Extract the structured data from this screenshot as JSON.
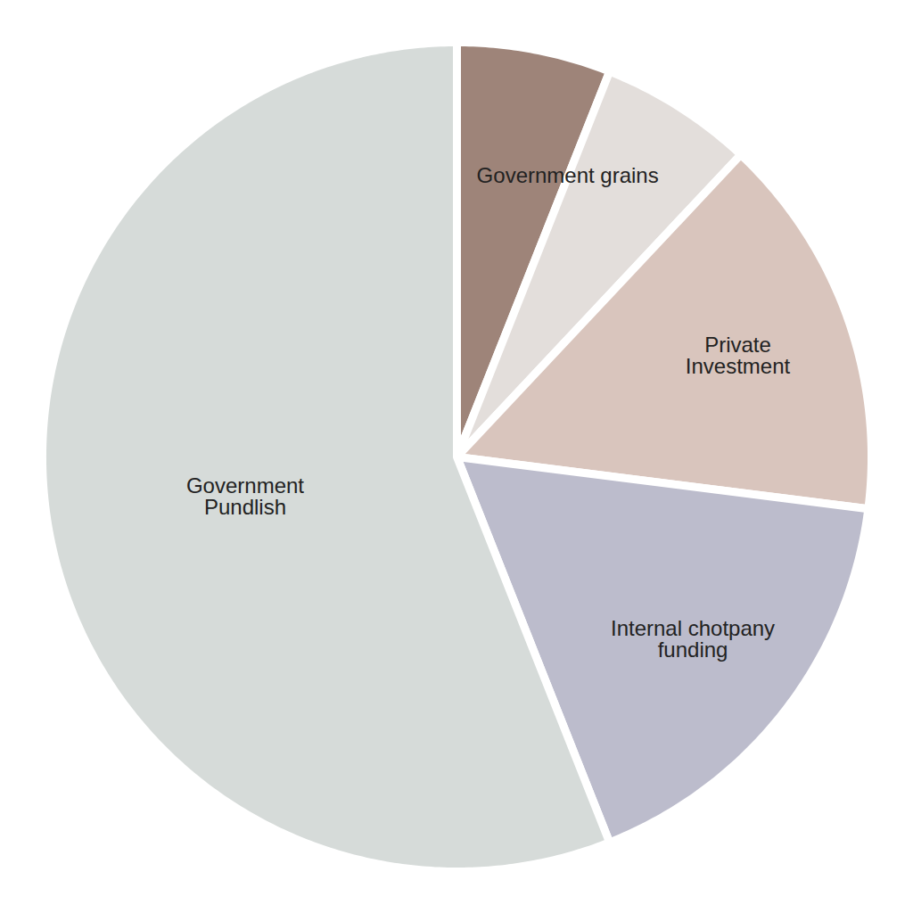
{
  "chart_data": {
    "type": "pie",
    "categories": [
      "Government grains",
      null,
      "Private Investment",
      "Internal chotpany funding",
      "Government Pundlish"
    ],
    "values": [
      6,
      6,
      15,
      17,
      56
    ],
    "colors": [
      "#9e8479",
      "#e3dedb",
      "#d9c5bd",
      "#bcbccc",
      "#d6dbd9"
    ]
  }
}
